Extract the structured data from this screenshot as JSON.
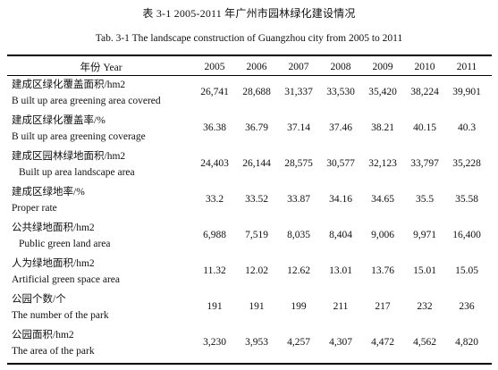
{
  "caption_cn": "表  3-1 2005-2011 年广州市园林绿化建设情况",
  "caption_en": "Tab. 3-1 The landscape construction of Guangzhou city from 2005 to 2011",
  "header": {
    "indicator": "年份  Year",
    "years": [
      "2005",
      "2006",
      "2007",
      "2008",
      "2009",
      "2010",
      "2011"
    ]
  },
  "rows": [
    {
      "label_cn": "建成区绿化覆盖面积/hm2",
      "label_en": "B uilt up area greening area covered",
      "values": [
        "26,741",
        "28,688",
        "31,337",
        "33,530",
        "35,420",
        "38,224",
        "39,901"
      ]
    },
    {
      "label_cn": "建成区绿化覆盖率/%",
      "label_en": "B uilt up area greening coverage",
      "values": [
        "36.38",
        "36.79",
        "37.14",
        "37.46",
        "38.21",
        "40.15",
        "40.3"
      ]
    },
    {
      "label_cn": "建成区园林绿地面积/hm2",
      "label_en": "Built up area landscape area",
      "values": [
        "24,403",
        "26,144",
        "28,575",
        "30,577",
        "32,123",
        "33,797",
        "35,228"
      ]
    },
    {
      "label_cn": "建成区绿地率/%",
      "label_en": "Proper rate",
      "values": [
        "33.2",
        "33.52",
        "33.87",
        "34.16",
        "34.65",
        "35.5",
        "35.58"
      ]
    },
    {
      "label_cn": "公共绿地面积/hm2",
      "label_en": "Public green land area",
      "values": [
        "6,988",
        "7,519",
        "8,035",
        "8,404",
        "9,006",
        "9,971",
        "16,400"
      ]
    },
    {
      "label_cn": "人为绿地面积/hm2",
      "label_en": "Artificial green space area",
      "values": [
        "11.32",
        "12.02",
        "12.62",
        "13.01",
        "13.76",
        "15.01",
        "15.05"
      ]
    },
    {
      "label_cn": "公园个数/个",
      "label_en": "The number of the park",
      "values": [
        "191",
        "191",
        "199",
        "211",
        "217",
        "232",
        "236"
      ]
    },
    {
      "label_cn": "公园面积/hm2",
      "label_en": "The area of the park",
      "values": [
        "3,230",
        "3,953",
        "4,257",
        "4,307",
        "4,472",
        "4,562",
        "4,820"
      ]
    }
  ]
}
